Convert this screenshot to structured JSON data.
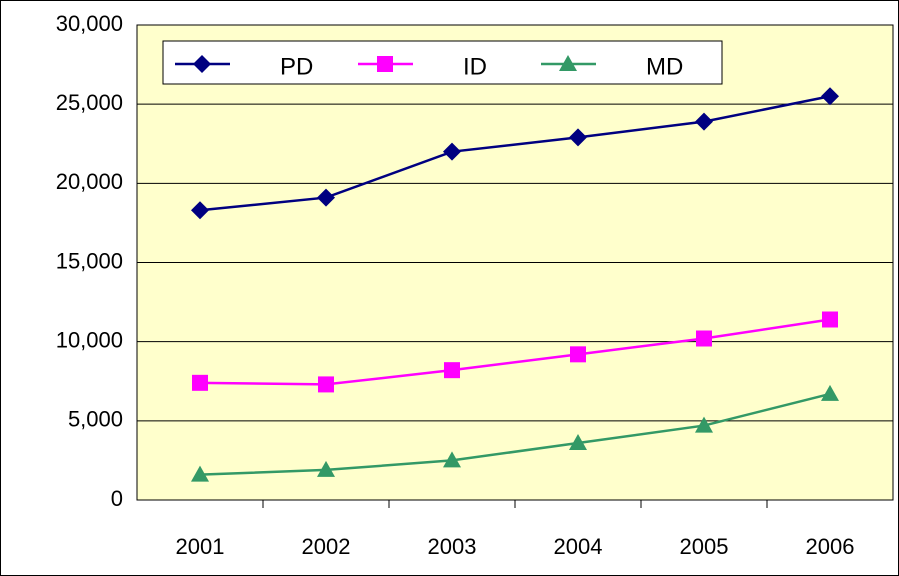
{
  "chart_data": {
    "type": "line",
    "categories": [
      "2001",
      "2002",
      "2003",
      "2004",
      "2005",
      "2006"
    ],
    "series": [
      {
        "name": "PD",
        "color": "#000080",
        "marker": "diamond",
        "values": [
          18300,
          19100,
          22000,
          22900,
          23900,
          25500
        ]
      },
      {
        "name": "ID",
        "color": "#ff00ff",
        "marker": "square",
        "values": [
          7400,
          7300,
          8200,
          9200,
          10200,
          11400
        ]
      },
      {
        "name": "MD",
        "color": "#339966",
        "marker": "triangle",
        "values": [
          1600,
          1900,
          2500,
          3600,
          4700,
          6700
        ]
      }
    ],
    "ylim": [
      0,
      30000
    ],
    "yticks": [
      0,
      {
        "value": 5000,
        "label": "5,000"
      },
      {
        "value": 10000,
        "label": "10,000"
      },
      {
        "value": 15000,
        "label": "15,000"
      },
      {
        "value": 20000,
        "label": "20,000"
      },
      {
        "value": 25000,
        "label": "25,000"
      },
      {
        "value": 30000,
        "label": "30,000"
      }
    ],
    "grid": true,
    "legend": "top"
  }
}
